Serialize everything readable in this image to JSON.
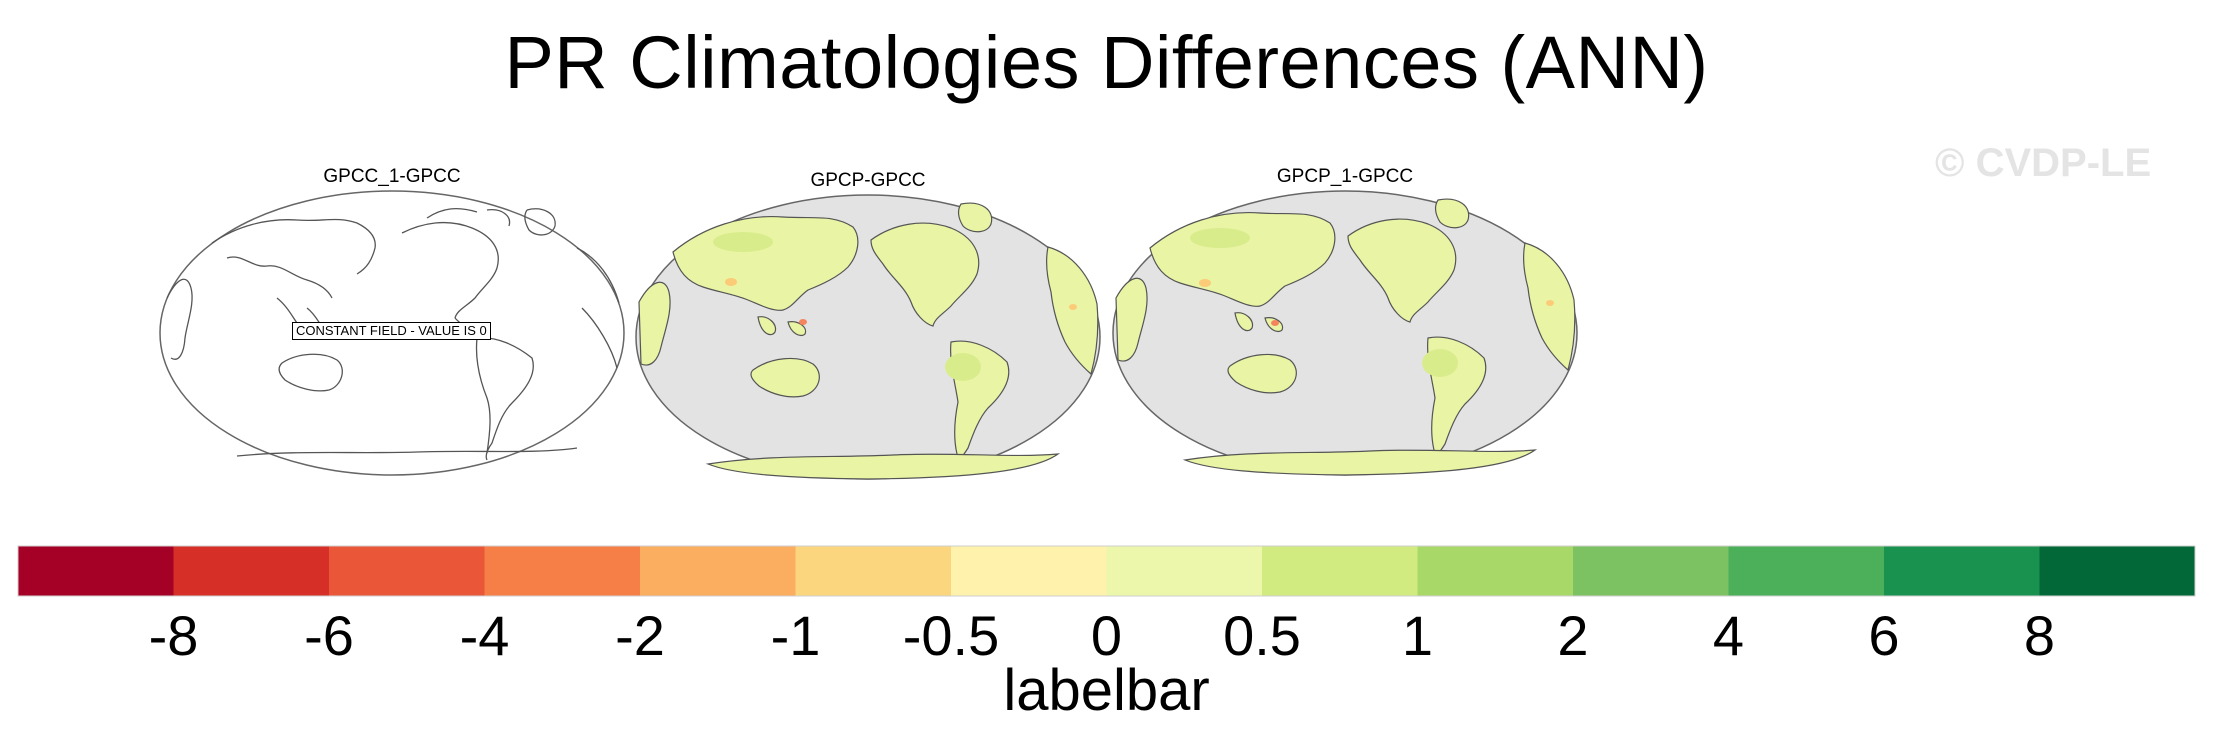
{
  "title": "PR Climatologies Differences (ANN)",
  "watermark": "© CVDP-LE",
  "panels": [
    {
      "title": "GPCC_1-GPCC",
      "note": "CONSTANT FIELD - VALUE IS 0",
      "filled": false
    },
    {
      "title": "GPCP-GPCC",
      "filled": true
    },
    {
      "title": "GPCP_1-GPCC",
      "filled": true
    }
  ],
  "labelbar": {
    "title": "labelbar",
    "ticks": [
      "-8",
      "-6",
      "-4",
      "-2",
      "-1",
      "-0.5",
      "0",
      "0.5",
      "1",
      "2",
      "4",
      "6",
      "8"
    ],
    "colors": [
      "#a50026",
      "#d62f27",
      "#ea5638",
      "#f67f48",
      "#fbad60",
      "#fcd57f",
      "#fef2ad",
      "#ecf7ab",
      "#d1eb80",
      "#a8d868",
      "#7dc262",
      "#4caf59",
      "#19924f",
      "#026837"
    ]
  },
  "map_colors": {
    "ocean": "#e3e3e3",
    "land": "#e9f4a4",
    "land_alt": "#d9ec8c",
    "dry_spot": "#fccb78",
    "coast": "#555555"
  }
}
